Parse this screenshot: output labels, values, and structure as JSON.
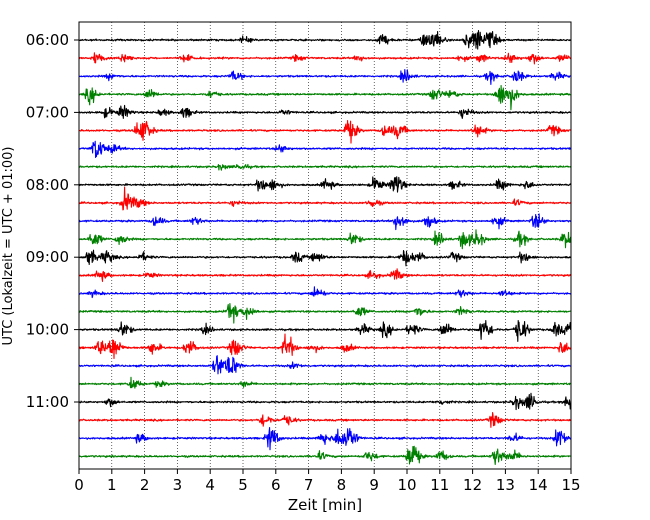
{
  "chart_data": {
    "type": "line",
    "xlabel": "Zeit  [min]",
    "ylabel": "UTC (Lokalzeit = UTC + 01:00)",
    "xlim": [
      0,
      15
    ],
    "x_ticks": [
      "0",
      "1",
      "2",
      "3",
      "4",
      "5",
      "6",
      "7",
      "8",
      "9",
      "10",
      "11",
      "12",
      "13",
      "14",
      "15"
    ],
    "y_tick_labels": [
      "06:00",
      "07:00",
      "08:00",
      "09:00",
      "10:00",
      "11:00"
    ],
    "vertical_grid": "dotted",
    "trace_interval_min": 15,
    "color_cycle": [
      "#000000",
      "#ff0000",
      "#0000ff",
      "#008000"
    ],
    "traces": [
      {
        "start": "06:00",
        "color": "#000000",
        "events": [
          [
            5.0,
            0.2
          ],
          [
            9.2,
            0.4
          ],
          [
            10.5,
            0.5
          ],
          [
            10.8,
            0.75
          ],
          [
            11.8,
            0.55
          ],
          [
            12.1,
            0.85
          ],
          [
            12.5,
            0.6
          ]
        ]
      },
      {
        "start": "06:15",
        "color": "#ff0000",
        "events": [
          [
            0.5,
            0.4
          ],
          [
            1.3,
            0.35
          ],
          [
            3.2,
            0.25
          ],
          [
            6.6,
            0.2
          ],
          [
            8.5,
            0.2
          ],
          [
            11.6,
            0.2
          ],
          [
            12.2,
            0.3
          ],
          [
            13.1,
            0.4
          ],
          [
            13.8,
            0.4
          ],
          [
            14.7,
            0.25
          ]
        ]
      },
      {
        "start": "06:30",
        "color": "#0000ff",
        "events": [
          [
            0.9,
            0.2
          ],
          [
            4.7,
            0.4
          ],
          [
            9.9,
            0.45
          ],
          [
            12.5,
            0.4
          ],
          [
            13.3,
            0.5
          ],
          [
            14.5,
            0.3
          ]
        ]
      },
      {
        "start": "06:45",
        "color": "#008000",
        "events": [
          [
            0.3,
            0.6
          ],
          [
            2.1,
            0.4
          ],
          [
            4.0,
            0.25
          ],
          [
            10.8,
            0.5
          ],
          [
            11.3,
            0.3
          ],
          [
            12.8,
            0.9
          ],
          [
            13.1,
            0.8
          ]
        ]
      },
      {
        "start": "07:00",
        "color": "#000000",
        "events": [
          [
            0.8,
            0.35
          ],
          [
            1.3,
            0.5
          ],
          [
            2.5,
            0.25
          ],
          [
            3.2,
            0.4
          ],
          [
            6.2,
            0.2
          ],
          [
            11.7,
            0.4
          ]
        ]
      },
      {
        "start": "07:15",
        "color": "#ff0000",
        "events": [
          [
            1.8,
            0.7
          ],
          [
            2.0,
            0.5
          ],
          [
            8.2,
            0.9
          ],
          [
            9.3,
            0.45
          ],
          [
            9.7,
            0.55
          ],
          [
            12.1,
            0.5
          ],
          [
            14.4,
            0.4
          ]
        ]
      },
      {
        "start": "07:30",
        "color": "#0000ff",
        "events": [
          [
            0.5,
            0.9
          ],
          [
            1.0,
            0.3
          ],
          [
            6.1,
            0.3
          ]
        ]
      },
      {
        "start": "07:45",
        "color": "#008000",
        "events": [
          [
            4.3,
            0.2
          ],
          [
            4.9,
            0.25
          ]
        ]
      },
      {
        "start": "08:00",
        "color": "#000000",
        "events": [
          [
            5.5,
            0.5
          ],
          [
            5.9,
            0.4
          ],
          [
            7.5,
            0.4
          ],
          [
            9.0,
            0.55
          ],
          [
            9.6,
            0.9
          ],
          [
            11.4,
            0.3
          ],
          [
            12.8,
            0.4
          ],
          [
            13.6,
            0.3
          ]
        ]
      },
      {
        "start": "08:15",
        "color": "#ff0000",
        "events": [
          [
            1.4,
            0.9
          ],
          [
            1.8,
            0.3
          ],
          [
            4.7,
            0.2
          ],
          [
            8.9,
            0.35
          ],
          [
            13.3,
            0.2
          ]
        ]
      },
      {
        "start": "08:30",
        "color": "#0000ff",
        "events": [
          [
            2.3,
            0.4
          ],
          [
            3.5,
            0.3
          ],
          [
            9.7,
            0.75
          ],
          [
            10.6,
            0.5
          ],
          [
            12.7,
            0.45
          ],
          [
            13.9,
            0.6
          ]
        ]
      },
      {
        "start": "08:45",
        "color": "#008000",
        "events": [
          [
            0.4,
            0.6
          ],
          [
            1.2,
            0.4
          ],
          [
            8.3,
            0.5
          ],
          [
            10.9,
            0.45
          ],
          [
            11.7,
            0.7
          ],
          [
            12.1,
            0.6
          ],
          [
            13.4,
            0.5
          ],
          [
            14.8,
            0.6
          ]
        ]
      },
      {
        "start": "09:00",
        "color": "#000000",
        "events": [
          [
            0.3,
            0.6
          ],
          [
            0.8,
            0.5
          ],
          [
            1.9,
            0.3
          ],
          [
            6.6,
            0.4
          ],
          [
            7.2,
            0.4
          ],
          [
            9.9,
            0.6
          ],
          [
            10.3,
            0.35
          ],
          [
            11.4,
            0.3
          ],
          [
            13.5,
            0.4
          ]
        ]
      },
      {
        "start": "09:15",
        "color": "#ff0000",
        "events": [
          [
            0.6,
            0.4
          ],
          [
            2.1,
            0.2
          ],
          [
            8.9,
            0.3
          ],
          [
            9.6,
            0.45
          ]
        ]
      },
      {
        "start": "09:30",
        "color": "#0000ff",
        "events": [
          [
            0.4,
            0.2
          ],
          [
            7.2,
            0.45
          ],
          [
            11.6,
            0.3
          ],
          [
            12.9,
            0.25
          ]
        ]
      },
      {
        "start": "09:45",
        "color": "#008000",
        "events": [
          [
            4.6,
            0.75
          ],
          [
            5.1,
            0.5
          ],
          [
            8.5,
            0.4
          ],
          [
            10.3,
            0.4
          ],
          [
            11.6,
            0.3
          ]
        ]
      },
      {
        "start": "10:00",
        "color": "#000000",
        "events": [
          [
            1.3,
            0.6
          ],
          [
            3.8,
            0.3
          ],
          [
            8.6,
            0.4
          ],
          [
            9.3,
            0.5
          ],
          [
            10.1,
            0.5
          ],
          [
            11.1,
            0.6
          ],
          [
            12.3,
            1.0
          ],
          [
            13.4,
            1.0
          ],
          [
            14.5,
            0.5
          ],
          [
            14.9,
            0.4
          ]
        ]
      },
      {
        "start": "10:15",
        "color": "#ff0000",
        "events": [
          [
            0.6,
            0.6
          ],
          [
            1.0,
            1.0
          ],
          [
            2.2,
            0.5
          ],
          [
            3.3,
            0.6
          ],
          [
            4.7,
            0.8
          ],
          [
            6.3,
            1.0
          ],
          [
            7.1,
            0.3
          ],
          [
            8.1,
            0.3
          ],
          [
            14.7,
            0.5
          ]
        ]
      },
      {
        "start": "10:30",
        "color": "#0000ff",
        "events": [
          [
            4.2,
            0.9
          ],
          [
            4.6,
            0.85
          ],
          [
            6.5,
            0.2
          ]
        ]
      },
      {
        "start": "10:45",
        "color": "#008000",
        "events": [
          [
            1.6,
            0.4
          ],
          [
            2.4,
            0.2
          ],
          [
            5.0,
            0.2
          ]
        ]
      },
      {
        "start": "11:00",
        "color": "#000000",
        "events": [
          [
            0.9,
            0.3
          ],
          [
            11.0,
            0.2
          ],
          [
            13.3,
            0.5
          ],
          [
            13.7,
            0.6
          ],
          [
            14.9,
            0.7
          ]
        ]
      },
      {
        "start": "11:15",
        "color": "#ff0000",
        "events": [
          [
            5.6,
            0.5
          ],
          [
            6.3,
            0.4
          ],
          [
            12.6,
            0.5
          ]
        ]
      },
      {
        "start": "11:30",
        "color": "#0000ff",
        "events": [
          [
            1.8,
            0.3
          ],
          [
            5.8,
            0.9
          ],
          [
            7.4,
            0.5
          ],
          [
            7.9,
            0.7
          ],
          [
            8.2,
            0.9
          ],
          [
            13.2,
            0.35
          ],
          [
            14.6,
            0.8
          ]
        ]
      },
      {
        "start": "11:45",
        "color": "#008000",
        "events": [
          [
            7.3,
            0.3
          ],
          [
            8.8,
            0.4
          ],
          [
            10.1,
            1.2
          ],
          [
            11.0,
            0.4
          ],
          [
            12.7,
            0.7
          ],
          [
            13.2,
            0.4
          ]
        ]
      }
    ]
  }
}
